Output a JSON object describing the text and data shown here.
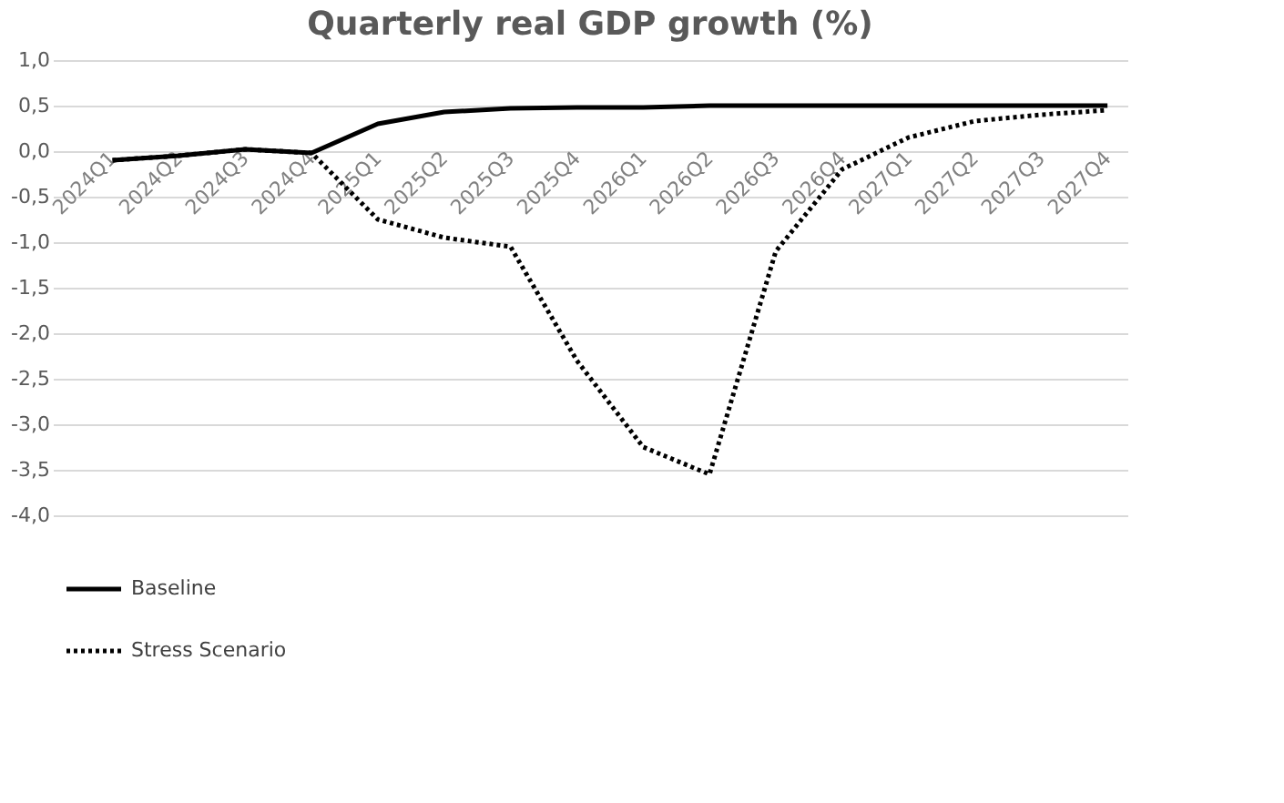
{
  "chart_data": {
    "type": "line",
    "title": "Quarterly real GDP growth (%)",
    "categories": [
      "2024Q1",
      "2024Q2",
      "2024Q3",
      "2024Q4",
      "2025Q1",
      "2025Q2",
      "2025Q3",
      "2025Q4",
      "2026Q1",
      "2026Q2",
      "2026Q3",
      "2026Q4",
      "2027Q1",
      "2027Q2",
      "2027Q3",
      "2027Q4"
    ],
    "series": [
      {
        "name": "Baseline",
        "color": "#000000",
        "line_style": "solid",
        "values": [
          -0.1,
          -0.05,
          0.02,
          -0.02,
          0.3,
          0.43,
          0.47,
          0.48,
          0.48,
          0.5,
          0.5,
          0.5,
          0.5,
          0.5,
          0.5,
          0.5
        ]
      },
      {
        "name": "Stress Scenario",
        "color": "#000000",
        "line_style": "dotted",
        "values": [
          -0.1,
          -0.05,
          0.02,
          -0.02,
          -0.75,
          -0.95,
          -1.05,
          -2.3,
          -3.25,
          -3.55,
          -1.1,
          -0.2,
          0.15,
          0.33,
          0.4,
          0.45
        ]
      }
    ],
    "ylim": [
      -4.0,
      1.0
    ],
    "yticks": [
      {
        "value": 1.0,
        "label": "1,0"
      },
      {
        "value": 0.5,
        "label": "0,5"
      },
      {
        "value": 0.0,
        "label": "0,0"
      },
      {
        "value": -0.5,
        "label": "-0,5"
      },
      {
        "value": -1.0,
        "label": "-1,0"
      },
      {
        "value": -1.5,
        "label": "-1,5"
      },
      {
        "value": -2.0,
        "label": "-2,0"
      },
      {
        "value": -2.5,
        "label": "-2,5"
      },
      {
        "value": -3.0,
        "label": "-3,0"
      },
      {
        "value": -3.5,
        "label": "-3,5"
      },
      {
        "value": -4.0,
        "label": "-4,0"
      }
    ],
    "grid": "y",
    "legend": "bottom",
    "marker": "none"
  }
}
